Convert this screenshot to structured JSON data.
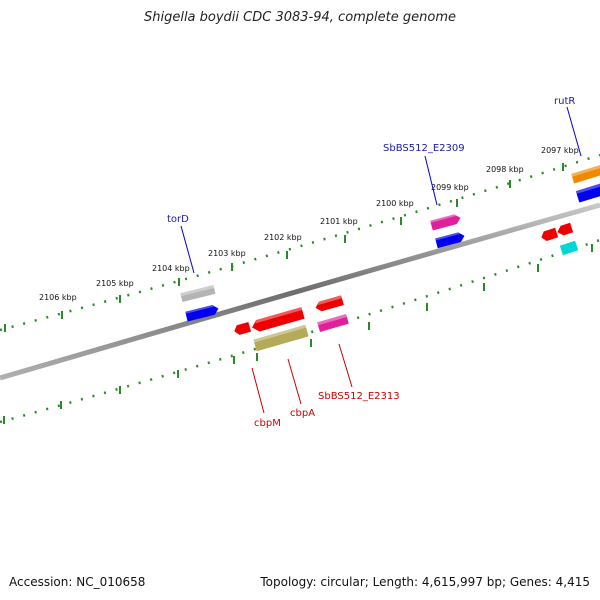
{
  "header": {
    "title": "Shigella boydii CDC 3083-94, complete genome"
  },
  "footer": {
    "accession": "Accession: NC_010658",
    "summary": "Topology: circular; Length: 4,615,997 bp; Genes: 4,415"
  },
  "ticks": [
    "2106 kbp",
    "2105 kbp",
    "2104 kbp",
    "2103 kbp",
    "2102 kbp",
    "2101 kbp",
    "2100 kbp",
    "2099 kbp",
    "2098 kbp",
    "2097 kbp"
  ],
  "colors": {
    "forward_label": "#1a1aa6",
    "reverse_label": "#cc0000",
    "backbone": "#808080",
    "scale": "#2a8a2a"
  },
  "features": {
    "forward": [
      {
        "name": "torD",
        "color": "#b4b4b4"
      },
      {
        "name": "",
        "color": "#0000ee"
      },
      {
        "name": "SbBS512_E2309",
        "color": "#e0209a"
      },
      {
        "name": "",
        "color": "#0000ee"
      },
      {
        "name": "rutR",
        "color": "#f08800"
      },
      {
        "name": "",
        "color": "#0000ee"
      }
    ],
    "reverse": [
      {
        "name": "",
        "color": "#ee0000"
      },
      {
        "name": "cbpM",
        "color": "#ee0000"
      },
      {
        "name": "cbpA",
        "color": "#b4aa5a"
      },
      {
        "name": "",
        "color": "#ee0000"
      },
      {
        "name": "SbBS512_E2313",
        "color": "#e0209a"
      },
      {
        "name": "",
        "color": "#ee0000"
      },
      {
        "name": "",
        "color": "#ee0000"
      },
      {
        "name": "",
        "color": "#00d8d8"
      }
    ]
  }
}
